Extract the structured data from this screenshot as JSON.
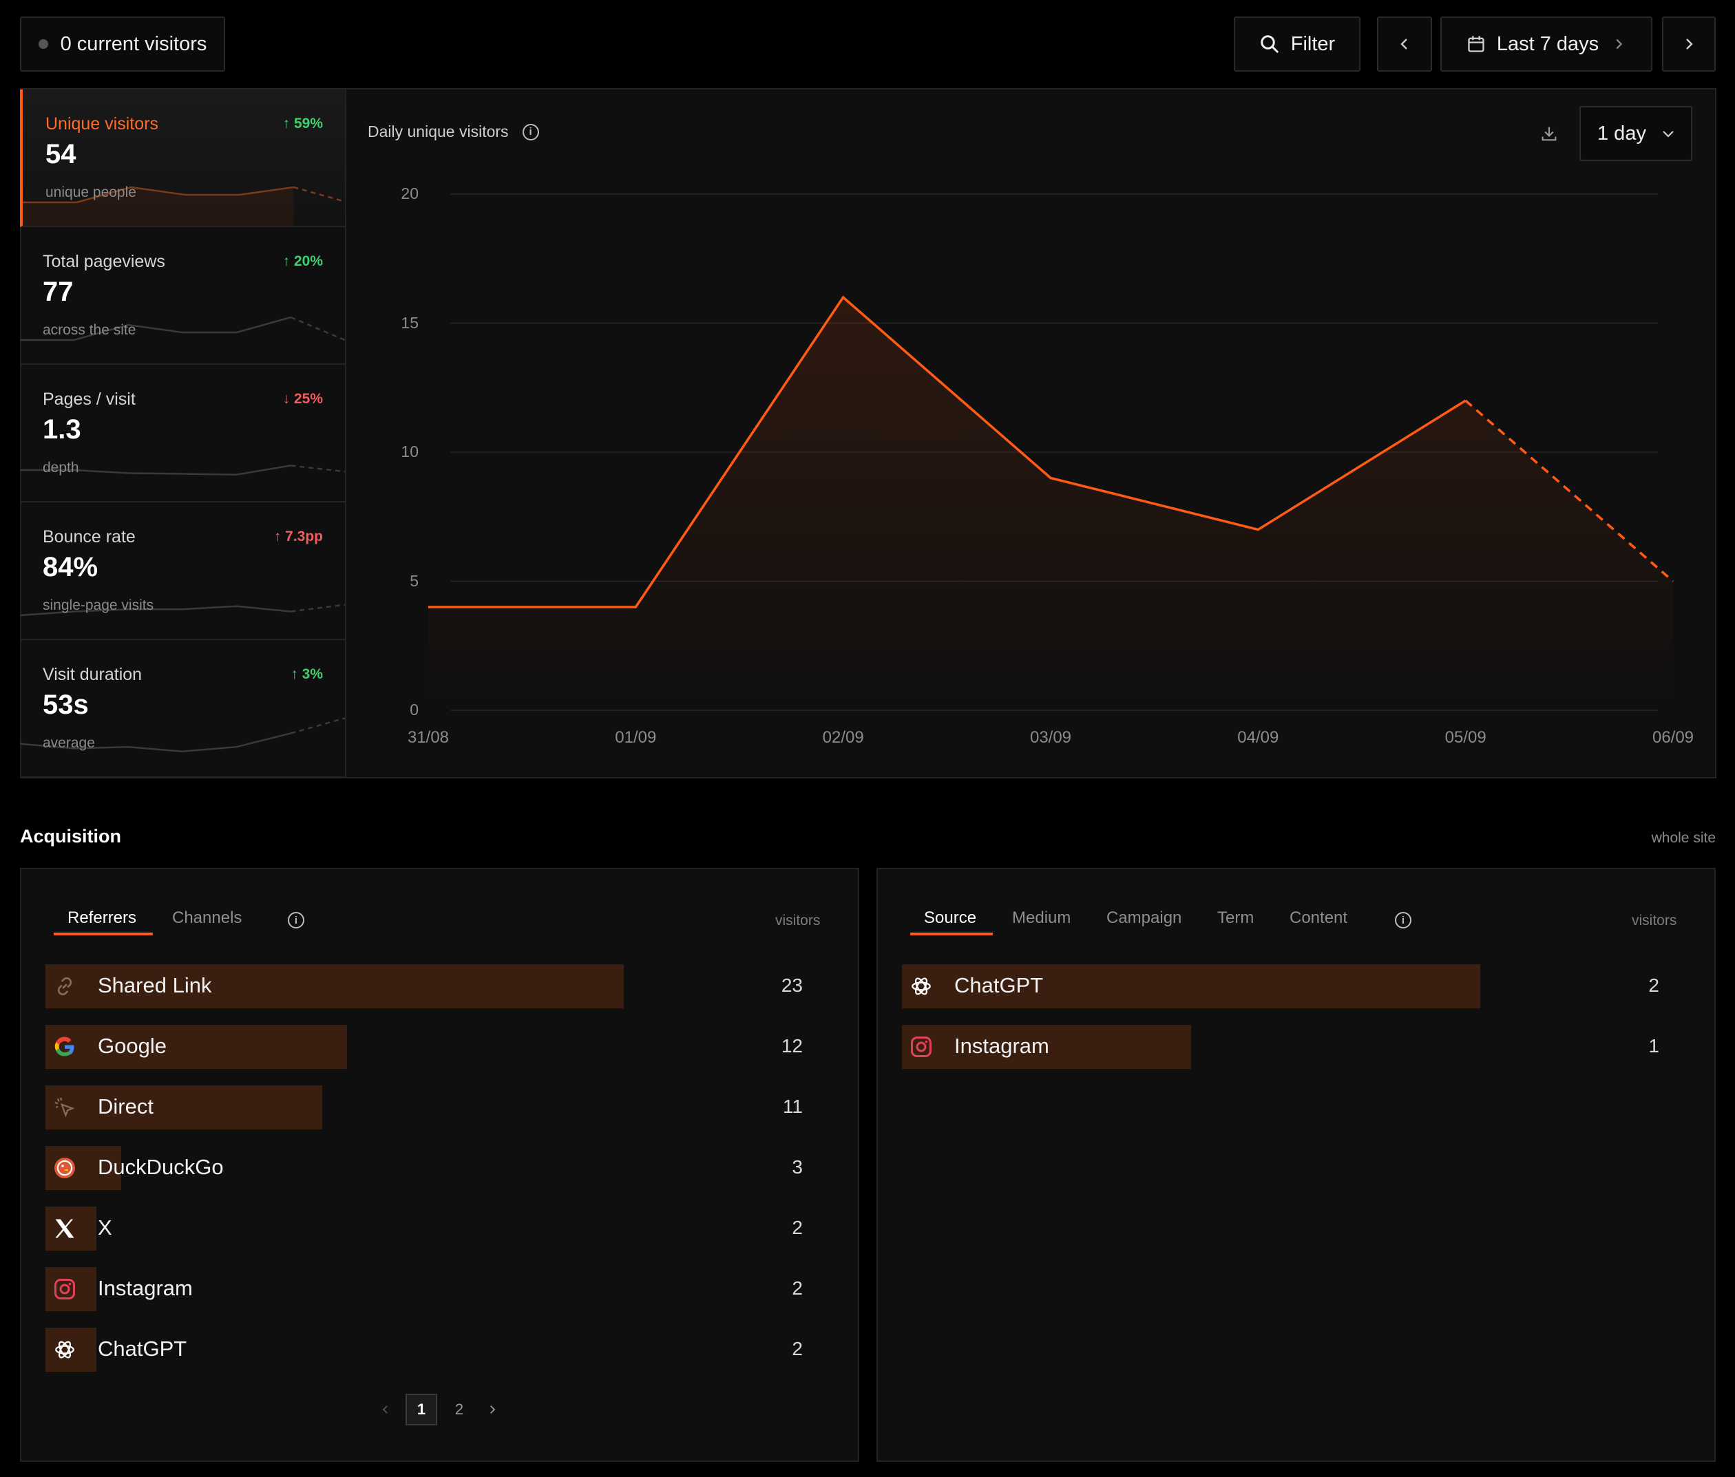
{
  "topbar": {
    "current_visitors": "0 current visitors",
    "filter_label": "Filter",
    "range_label": "Last 7 days"
  },
  "kpis": [
    {
      "title": "Unique visitors",
      "value": "54",
      "sub": "unique people",
      "delta": "↑ 59%",
      "trend": [
        2,
        2,
        4,
        3,
        3,
        4,
        2
      ]
    },
    {
      "title": "Total pageviews",
      "value": "77",
      "sub": "across the site",
      "delta": "↑ 20%",
      "trend": [
        2,
        2,
        4,
        3,
        3,
        5,
        2
      ]
    },
    {
      "title": "Pages / visit",
      "value": "1.3",
      "sub": "depth",
      "delta": "↓ 25%",
      "trend": [
        3,
        3,
        2.6,
        2.5,
        2.4,
        3.6,
        2.8
      ]
    },
    {
      "title": "Bounce rate",
      "value": "84%",
      "sub": "single-page visits",
      "delta": "↑ 7.3pp",
      "trend": [
        2,
        2.5,
        2.8,
        2.8,
        3.2,
        2.5,
        3.4
      ]
    },
    {
      "title": "Visit duration",
      "value": "53s",
      "sub": "average",
      "delta": "↑ 3%",
      "trend": [
        3.2,
        2.6,
        2.8,
        2.2,
        2.8,
        4.6,
        6.6
      ]
    }
  ],
  "chart": {
    "title": "Daily unique visitors",
    "interval": "1 day"
  },
  "chart_data": {
    "type": "area",
    "title": "Daily unique visitors",
    "x": [
      "31/08",
      "01/09",
      "02/09",
      "03/09",
      "04/09",
      "05/09",
      "06/09"
    ],
    "values": [
      4,
      4,
      16,
      9,
      7,
      12,
      5
    ],
    "yticks": [
      "0",
      "5",
      "10",
      "15",
      "20"
    ],
    "ylim": [
      0,
      20
    ],
    "grid": true,
    "last_segment_dashed": true,
    "color": "#ff5b14"
  },
  "acquisition": {
    "title": "Acquisition",
    "scope": "whole site",
    "left": {
      "tabs": [
        "Referrers",
        "Channels"
      ],
      "column": "visitors",
      "rows": [
        {
          "label": "Shared Link",
          "count": "23",
          "value": 23,
          "icon": "link-icon"
        },
        {
          "label": "Google",
          "count": "12",
          "value": 12,
          "icon": "google-icon"
        },
        {
          "label": "Direct",
          "count": "11",
          "value": 11,
          "icon": "cursor-click-icon"
        },
        {
          "label": "DuckDuckGo",
          "count": "3",
          "value": 3,
          "icon": "duckduckgo-icon"
        },
        {
          "label": "X",
          "count": "2",
          "value": 2,
          "icon": "x-icon"
        },
        {
          "label": "Instagram",
          "count": "2",
          "value": 2,
          "icon": "instagram-icon"
        },
        {
          "label": "ChatGPT",
          "count": "2",
          "value": 2,
          "icon": "chatgpt-icon"
        }
      ],
      "pages": [
        "1",
        "2"
      ]
    },
    "right": {
      "tabs": [
        "Source",
        "Medium",
        "Campaign",
        "Term",
        "Content"
      ],
      "column": "visitors",
      "rows": [
        {
          "label": "ChatGPT",
          "count": "2",
          "value": 2,
          "icon": "chatgpt-icon"
        },
        {
          "label": "Instagram",
          "count": "1",
          "value": 1,
          "icon": "instagram-icon"
        }
      ]
    }
  }
}
